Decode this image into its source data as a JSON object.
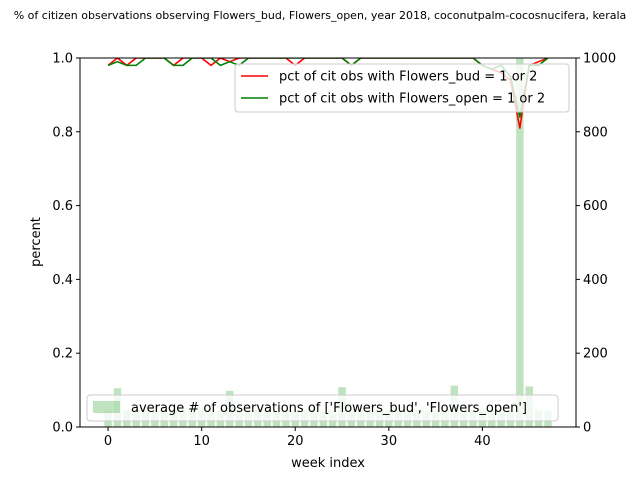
{
  "chart_data": {
    "type": "line",
    "title": "% of citizen observations observing Flowers_bud, Flowers_open, year 2018, coconutpalm-cocosnucifera, kerala",
    "xlabel": "week index",
    "ylabel": "percent",
    "xlim": [
      -3,
      50
    ],
    "ylim": [
      0,
      1
    ],
    "y2lim": [
      0,
      1000
    ],
    "x_ticks": [
      0,
      10,
      20,
      30,
      40
    ],
    "y_ticks": [
      0.0,
      0.2,
      0.4,
      0.6,
      0.8,
      1.0
    ],
    "y2_ticks": [
      0,
      200,
      400,
      600,
      800,
      1000
    ],
    "grid": false,
    "x": [
      0,
      1,
      2,
      3,
      4,
      5,
      6,
      7,
      8,
      9,
      10,
      11,
      12,
      13,
      14,
      15,
      16,
      17,
      18,
      19,
      20,
      21,
      22,
      23,
      24,
      25,
      26,
      27,
      28,
      29,
      30,
      31,
      32,
      33,
      34,
      35,
      36,
      37,
      38,
      39,
      40,
      41,
      42,
      43,
      44,
      45,
      46,
      47
    ],
    "series": [
      {
        "name": "pct of cit obs with Flowers_bud = 1 or 2",
        "color": "#ff0000",
        "axis": "left",
        "kind": "line",
        "values": [
          0.98,
          1.0,
          0.98,
          1.0,
          1.0,
          1.0,
          1.0,
          0.98,
          1.0,
          1.0,
          1.0,
          0.98,
          1.0,
          0.99,
          1.0,
          1.0,
          1.0,
          1.0,
          1.0,
          1.0,
          0.98,
          1.0,
          1.0,
          1.0,
          1.0,
          1.0,
          0.98,
          1.0,
          1.0,
          1.0,
          1.0,
          1.0,
          1.0,
          1.0,
          1.0,
          1.0,
          1.0,
          1.0,
          1.0,
          1.0,
          0.98,
          0.97,
          0.96,
          0.94,
          0.81,
          0.98,
          0.99,
          1.0
        ]
      },
      {
        "name": "pct of cit obs with Flowers_open = 1 or 2",
        "color": "#008000",
        "axis": "left",
        "kind": "line",
        "values": [
          0.98,
          0.99,
          0.98,
          0.98,
          1.0,
          1.0,
          1.0,
          0.98,
          0.98,
          1.0,
          1.0,
          1.0,
          0.98,
          0.99,
          0.98,
          1.0,
          1.0,
          1.0,
          1.0,
          1.0,
          1.0,
          1.0,
          1.0,
          1.0,
          1.0,
          1.0,
          0.98,
          1.0,
          1.0,
          1.0,
          1.0,
          1.0,
          1.0,
          1.0,
          1.0,
          1.0,
          1.0,
          1.0,
          1.0,
          1.0,
          0.98,
          0.97,
          0.98,
          0.95,
          0.84,
          0.98,
          0.98,
          1.0
        ]
      },
      {
        "name": "average # of observations of ['Flowers_bud', 'Flowers_open']",
        "color": "#2ca02c",
        "axis": "right",
        "kind": "bar",
        "values": [
          45,
          105,
          45,
          45,
          45,
          45,
          45,
          45,
          45,
          45,
          45,
          45,
          45,
          98,
          45,
          45,
          45,
          45,
          45,
          45,
          45,
          45,
          45,
          45,
          45,
          108,
          45,
          45,
          45,
          45,
          45,
          45,
          45,
          45,
          45,
          45,
          45,
          112,
          45,
          45,
          45,
          45,
          45,
          45,
          1000,
          110,
          45,
          45
        ]
      }
    ],
    "legends": [
      {
        "placement": "upper-right",
        "entries": [
          "pct of cit obs with Flowers_bud = 1 or 2",
          "pct of cit obs with Flowers_open = 1 or 2"
        ]
      },
      {
        "placement": "lower-left",
        "entries": [
          "average # of observations of ['Flowers_bud', 'Flowers_open']"
        ]
      }
    ]
  }
}
